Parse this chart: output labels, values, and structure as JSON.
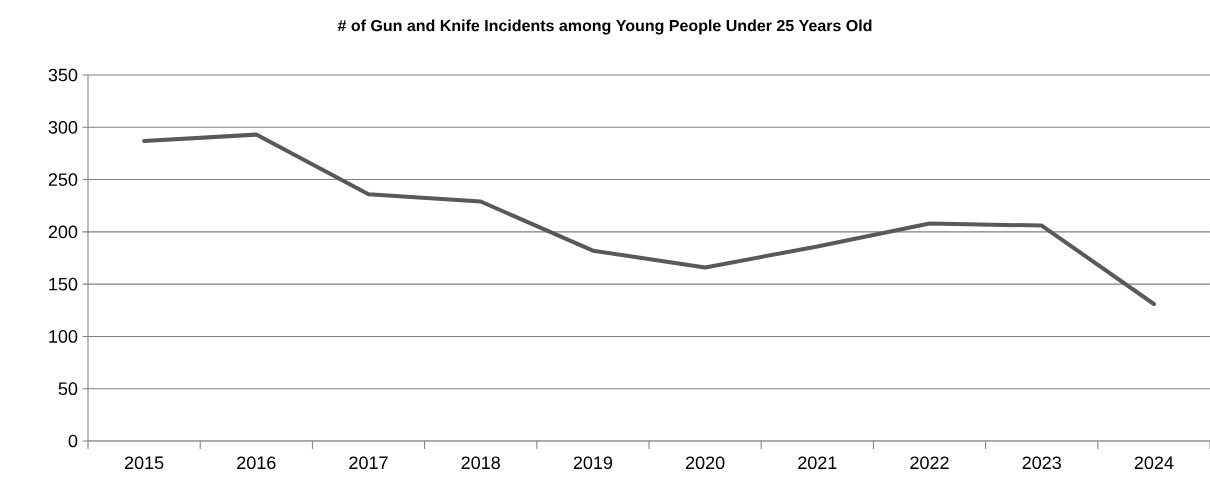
{
  "chart_data": {
    "type": "line",
    "title": "# of Gun and Knife Incidents among Young People Under 25 Years Old",
    "categories": [
      "2015",
      "2016",
      "2017",
      "2018",
      "2019",
      "2020",
      "2021",
      "2022",
      "2023",
      "2024"
    ],
    "series": [
      {
        "color": "#595959",
        "values": [
          287,
          293,
          236,
          229,
          182,
          166,
          186,
          208,
          206,
          131
        ]
      }
    ],
    "ylim": [
      0,
      350
    ],
    "yticks": [
      0,
      50,
      100,
      150,
      200,
      250,
      300,
      350
    ],
    "grid": "y",
    "legend": false,
    "marker": "none",
    "line_style": "solid"
  }
}
